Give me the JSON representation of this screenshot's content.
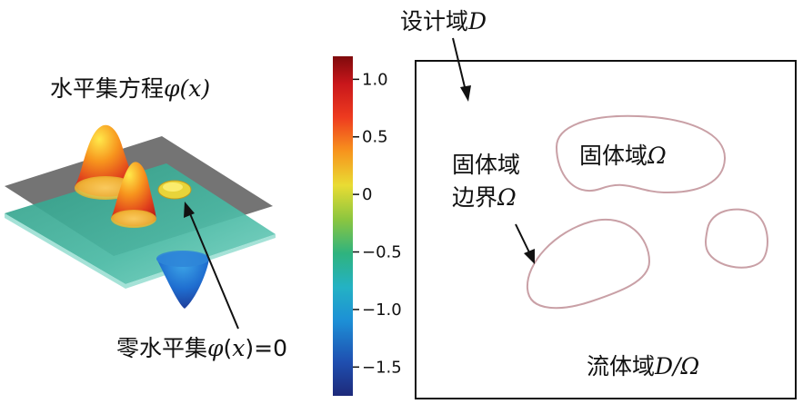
{
  "labels": {
    "design_domain": "设计域",
    "design_domain_symbol": "D",
    "level_set_function": "水平集方程",
    "level_set_phi": "φ",
    "level_set_arg_open": "(",
    "level_set_arg_x": "x",
    "level_set_arg_close": ")",
    "solid_domain": "固体域",
    "solid_domain_symbol": "Ω",
    "solid_boundary_line1": "固体域",
    "solid_boundary_line2": "边界",
    "solid_boundary_symbol": "Ω",
    "zero_level_set": "零水平集",
    "zero_level_set_phi": "φ",
    "zero_level_set_arg_open": "(",
    "zero_level_set_arg_x": "x",
    "zero_level_set_arg_close": ")=0",
    "fluid_domain": "流体域",
    "fluid_domain_symbol": "D/Ω"
  },
  "colorbar": {
    "ticks": [
      "1.0",
      "0.5",
      "0",
      "−0.5",
      "−1.0",
      "−1.5"
    ],
    "tick_values": [
      1.0,
      0.5,
      0,
      -0.5,
      -1.0,
      -1.5
    ],
    "range": [
      -1.75,
      1.2
    ]
  },
  "colors": {
    "gray_plane": "#6d6d6d",
    "teal_plane": "#3fb3a0",
    "boundary": "#c9a0a6",
    "frame": "#111111"
  },
  "icons": {
    "arrow": "arrow-icon"
  }
}
